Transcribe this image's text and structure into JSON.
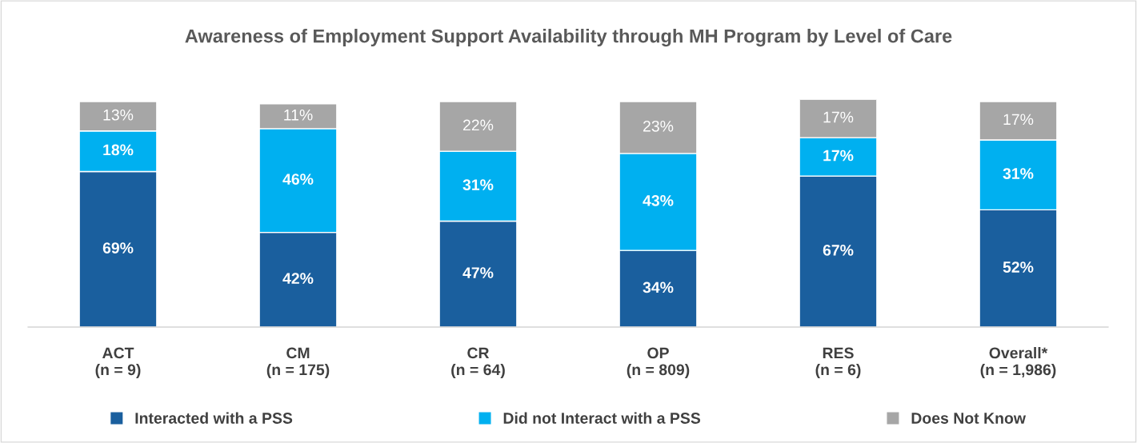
{
  "chart_data": {
    "type": "bar",
    "stacked": true,
    "title": "Awareness of Employment Support Availability through MH Program by Level of Care",
    "categories": [
      "ACT\n(n = 9)",
      "CM\n(n = 175)",
      "CR\n(n = 64)",
      "OP\n(n = 809)",
      "RES\n(n = 6)",
      "Overall*\n(n = 1,986)"
    ],
    "series": [
      {
        "name": "Interacted with a PSS",
        "color": "#1a5f9e",
        "values": [
          69,
          42,
          47,
          34,
          67,
          52
        ],
        "value_labels": [
          "69%",
          "42%",
          "47%",
          "34%",
          "67%",
          "52%"
        ]
      },
      {
        "name": "Did not Interact with a PSS",
        "color": "#00b0f0",
        "values": [
          18,
          46,
          31,
          43,
          17,
          31
        ],
        "value_labels": [
          "18%",
          "46%",
          "31%",
          "43%",
          "17%",
          "31%"
        ]
      },
      {
        "name": "Does Not Know",
        "color": "#a6a6a6",
        "values": [
          13,
          11,
          22,
          23,
          17,
          17
        ],
        "value_labels": [
          "13%",
          "11%",
          "22%",
          "23%",
          "17%",
          "17%"
        ]
      }
    ],
    "legend": "bottom",
    "grid": false
  }
}
